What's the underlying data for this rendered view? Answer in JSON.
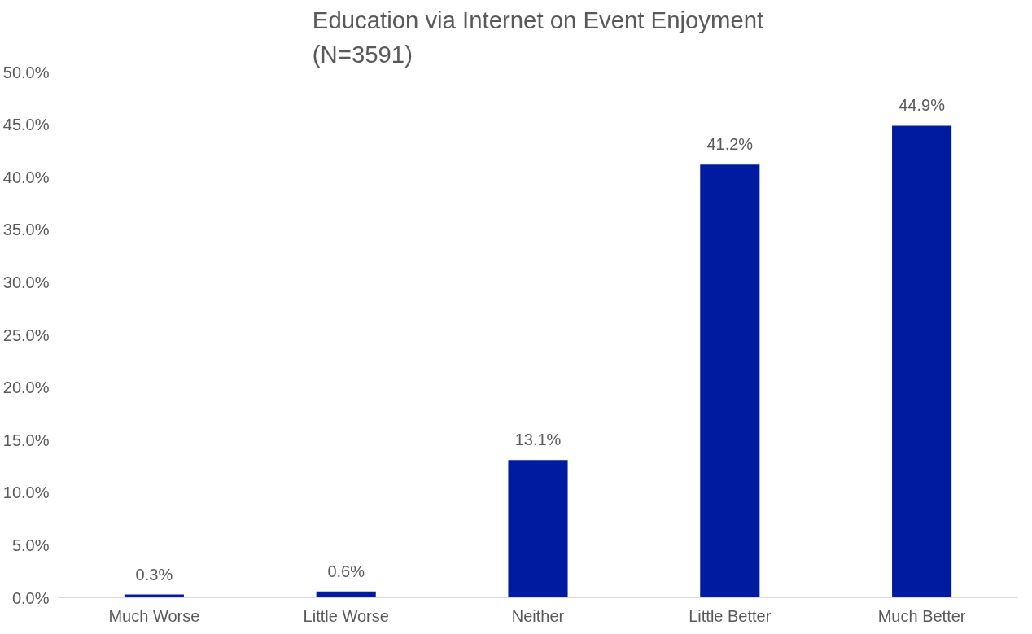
{
  "chart_data": {
    "type": "bar",
    "title": "Education via Internet on Event Enjoyment\n(N=3591)",
    "categories": [
      "Much Worse",
      "Little Worse",
      "Neither",
      "Little Better",
      "Much Better"
    ],
    "values": [
      0.3,
      0.6,
      13.1,
      41.2,
      44.9
    ],
    "value_labels": [
      "0.3%",
      "0.6%",
      "13.1%",
      "41.2%",
      "44.9%"
    ],
    "color": "#001ba0",
    "ylim": [
      0,
      50
    ],
    "yticks": [
      {
        "value": 0,
        "label": "0.0%"
      },
      {
        "value": 5,
        "label": "5.0%"
      },
      {
        "value": 10,
        "label": "10.0%"
      },
      {
        "value": 15,
        "label": "15.0%"
      },
      {
        "value": 20,
        "label": "20.0%"
      },
      {
        "value": 25,
        "label": "25.0%"
      },
      {
        "value": 30,
        "label": "30.0%"
      },
      {
        "value": 35,
        "label": "35.0%"
      },
      {
        "value": 40,
        "label": "40.0%"
      },
      {
        "value": 45,
        "label": "45.0%"
      },
      {
        "value": 50,
        "label": "50.0%"
      }
    ],
    "grid": false
  }
}
